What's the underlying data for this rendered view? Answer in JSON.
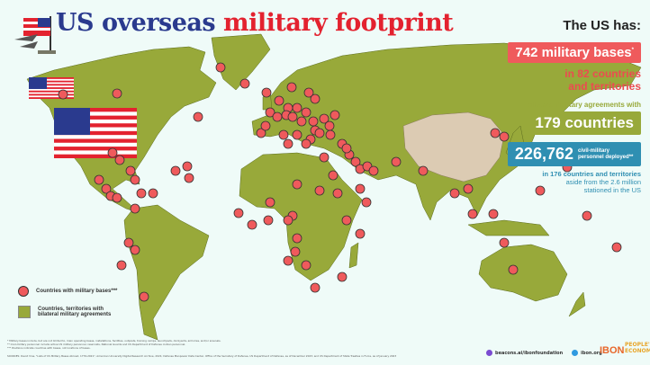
{
  "header": {
    "title_part1": "US overseas",
    "title_part2": "military footprint"
  },
  "summary": {
    "heading": "The US has:",
    "bases": "742 military bases",
    "bases_mark": "*",
    "countries_line1": "in 82 countries",
    "countries_line2": "and territories",
    "agreements_prefix": "bilateral military agreements with",
    "agreements": "179 countries",
    "personnel": "226,762",
    "personnel_label": "civil-military personnel deployed**",
    "deployed_line1_bold": "in 176 countries and territories",
    "deployed_line2": "aside from the 2.6 million",
    "deployed_line3": "stationed in the US"
  },
  "legend": {
    "bases": "Countries with military bases***",
    "agreements": "Countries, territories with bilateral military agreements"
  },
  "footnotes": [
    "* Military bases include, but are not limited to, main operating bases, installations, facilities, outposts, training camps, launchpads, dockyards, armories, and/or arsenals.",
    "** Civil-military personnel include active US military personnel, reservists, National Guards and US Department of Defense civilian personnel.",
    "*** Positions indicate countries with bases, not locations of bases."
  ],
  "sources": "SOURCES: David Vine, \"Lists of US Military Bases Abroad, 1776-2021\", American University Digital Research Archive, 2021; Defense Manpower Data Center, Office of the Secretary of Defense, US Department of Defense, as of December 2023; and US Department of State Treaties in Force, as of January 2023",
  "links": {
    "beacons": "beacons.ai/ibonfoundation",
    "site": "ibon.org"
  },
  "logos": {
    "ibon": "IBON",
    "peoples": "PEOPLE'S ECONOMICS"
  },
  "colors": {
    "agreements": "#98a93a",
    "bases": "#ef5a5c",
    "title_blue": "#2a3a8e",
    "title_red": "#e3222f",
    "personnel": "#2f8fb2",
    "china": "#dccbb3"
  }
}
